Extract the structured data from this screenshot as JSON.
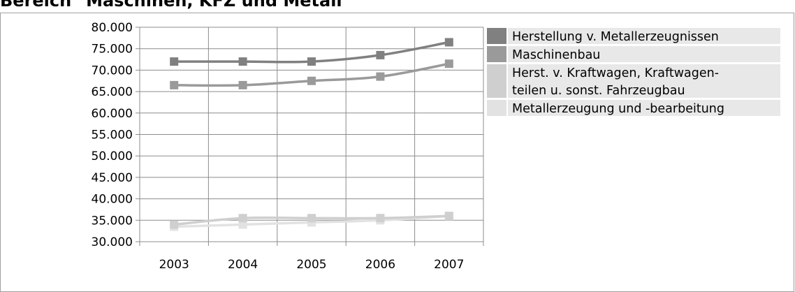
{
  "header": {
    "title": "Bereich \"Maschinen, KFZ und Metall\""
  },
  "colors": {
    "series": [
      "#808080",
      "#9a9a9a",
      "#cfcfcf",
      "#e2e2e2"
    ],
    "grid": "#8c8c8c",
    "legend_row_bg": "#e8e8e8"
  },
  "chart_data": {
    "type": "line",
    "title": "Bereich \"Maschinen, KFZ und Metall\"",
    "categories": [
      "2003",
      "2004",
      "2005",
      "2006",
      "2007"
    ],
    "y_ticks": [
      "30.000",
      "35.000",
      "40.000",
      "45.000",
      "50.000",
      "55.000",
      "60.000",
      "65.000",
      "70.000",
      "75.000",
      "80.000"
    ],
    "ylim": [
      30000,
      80000
    ],
    "grid": true,
    "legend_position": "right",
    "series": [
      {
        "name": "Herstellung v. Metallerzeugnissen",
        "legend_lines": [
          "Herstellung v. Metallerzeugnissen"
        ],
        "values": [
          72000,
          72000,
          72000,
          73500,
          76500
        ]
      },
      {
        "name": "Maschinenbau",
        "legend_lines": [
          "Maschinenbau"
        ],
        "values": [
          66500,
          66500,
          67500,
          68500,
          71500
        ]
      },
      {
        "name": "Herst. v. Kraftwagen, Kraftwagenteilen u. sonst. Fahrzeugbau",
        "legend_lines": [
          "Herst. v. Kraftwagen, Kraftwagen-",
          "teilen u. sonst. Fahrzeugbau"
        ],
        "values": [
          34000,
          35500,
          35500,
          35500,
          36000
        ]
      },
      {
        "name": "Metallerzeugung und -bearbeitung",
        "legend_lines": [
          "Metallerzeugung und -bearbeitung"
        ],
        "values": [
          33500,
          34000,
          34500,
          35000,
          36000
        ]
      }
    ]
  }
}
